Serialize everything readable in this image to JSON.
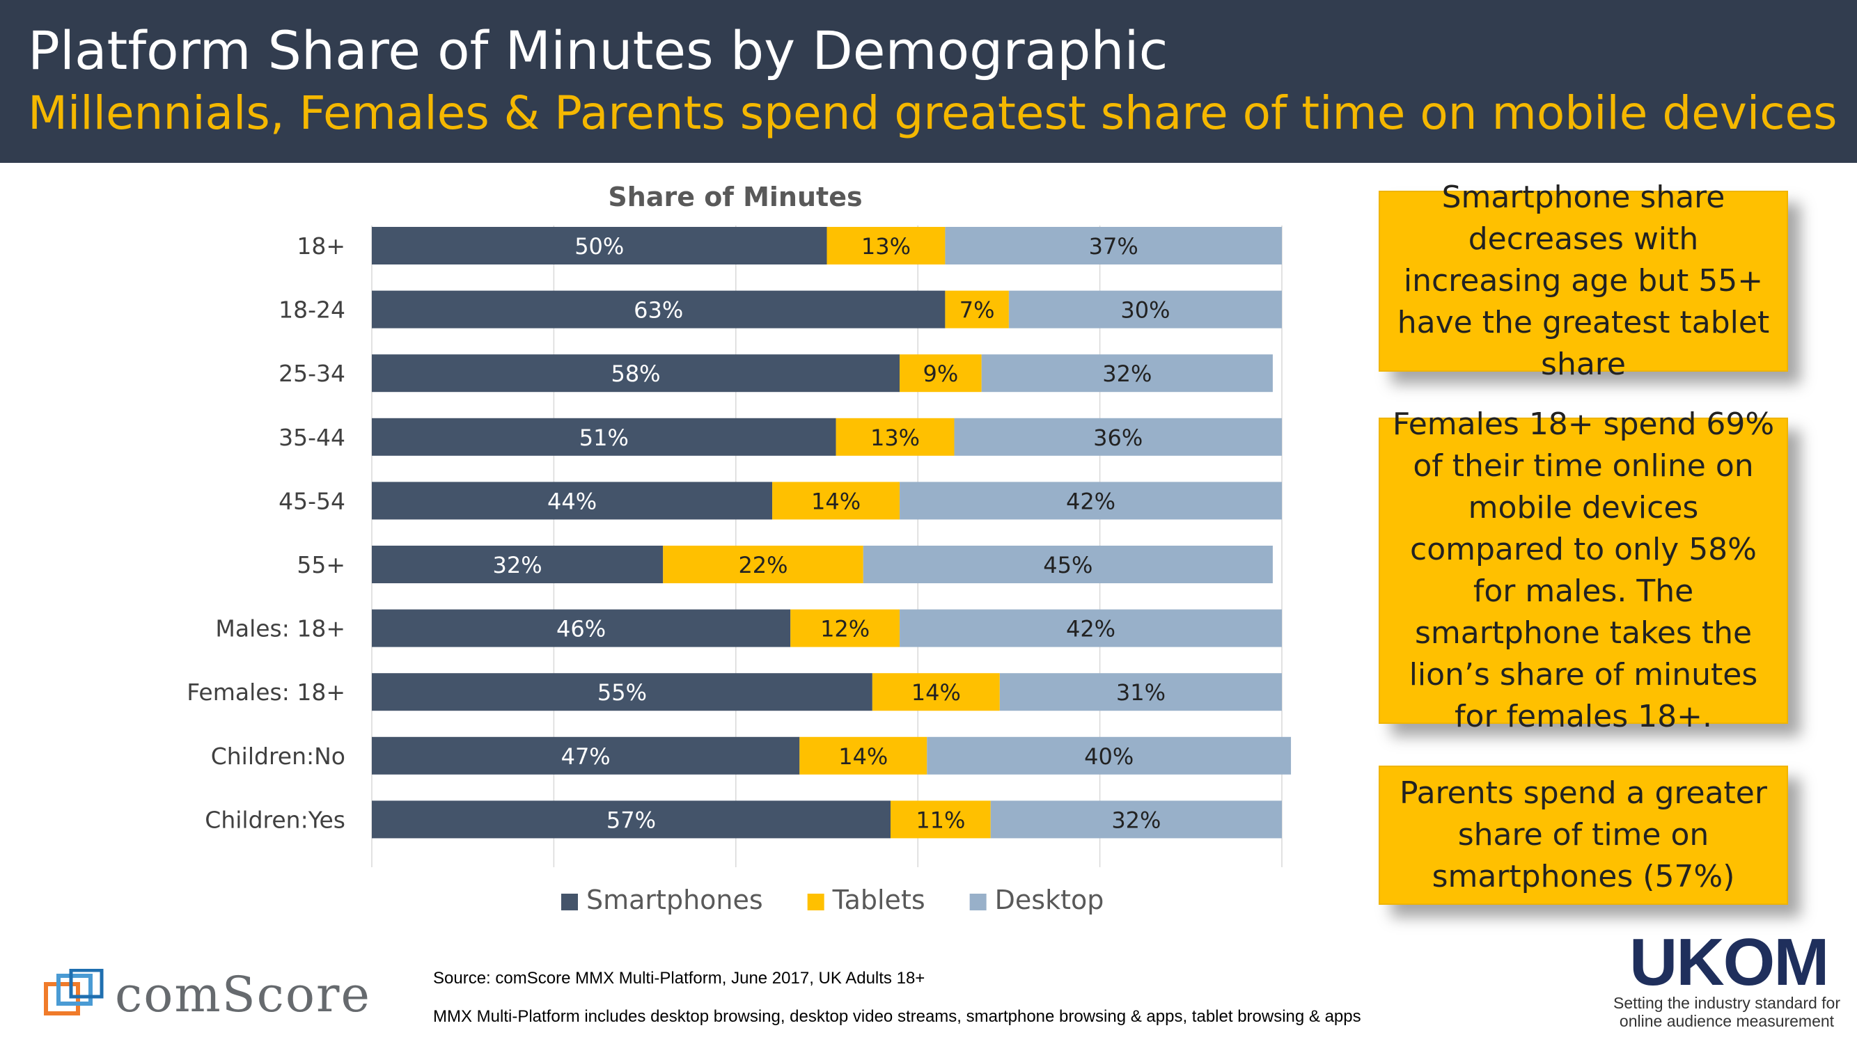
{
  "header": {
    "title": "Platform Share of Minutes by Demographic",
    "subtitle": "Millennials, Females & Parents spend greatest share of time on mobile devices"
  },
  "colors": {
    "header_bg": "#323d4f",
    "subtitle": "#f5b800",
    "smartphones": "#44546a",
    "tablets": "#ffc000",
    "desktop": "#98b0c9",
    "callout_bg": "#ffc000"
  },
  "chart_data": {
    "type": "bar",
    "orientation": "horizontal",
    "stacked": true,
    "title": "Share of Minutes",
    "xlabel": "",
    "ylabel": "",
    "xlim": [
      0,
      100
    ],
    "grid": true,
    "legend_position": "bottom",
    "categories": [
      "18+",
      "18-24",
      "25-34",
      "35-44",
      "45-54",
      "55+",
      "Males: 18+",
      "Females: 18+",
      "Children:No",
      "Children:Yes"
    ],
    "series": [
      {
        "name": "Smartphones",
        "values": [
          50,
          63,
          58,
          51,
          44,
          32,
          46,
          55,
          47,
          57
        ]
      },
      {
        "name": "Tablets",
        "values": [
          13,
          7,
          9,
          13,
          14,
          22,
          12,
          14,
          14,
          11
        ]
      },
      {
        "name": "Desktop",
        "values": [
          37,
          30,
          32,
          36,
          42,
          45,
          42,
          31,
          40,
          32
        ]
      }
    ]
  },
  "callouts": [
    "Smartphone share decreases with increasing age but 55+  have the greatest tablet share",
    "Females 18+ spend 69% of their time online on mobile devices compared to only 58% for males. The smartphone takes the lion’s share of minutes for females 18+.",
    "Parents spend a greater share of time on smartphones (57%)"
  ],
  "footer": {
    "brand": "comScore",
    "source": "Source: comScore MMX Multi-Platform, June 2017, UK Adults 18+",
    "note": "MMX Multi-Platform includes desktop browsing, desktop video streams, smartphone browsing & apps, tablet browsing & apps",
    "ukom_logo": "UKOM",
    "ukom_tagline_1": "Setting the industry standard for",
    "ukom_tagline_2": "online audience measurement"
  }
}
